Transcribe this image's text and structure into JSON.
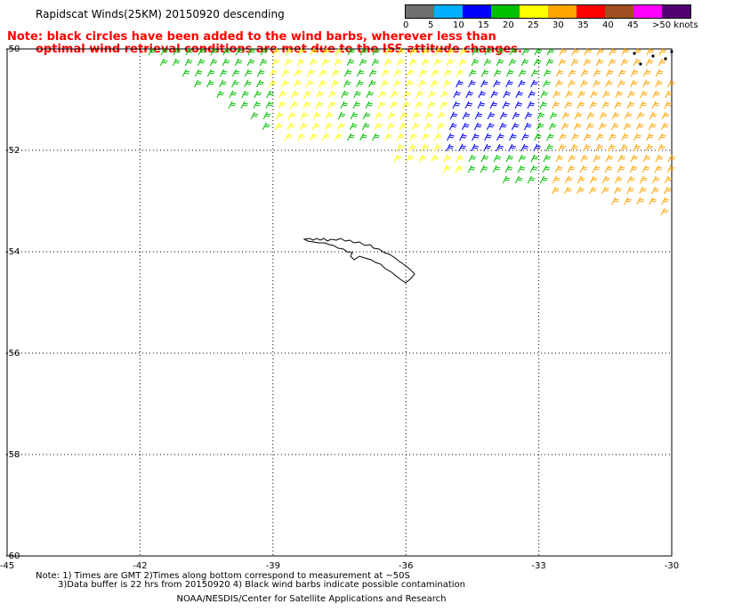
{
  "title": "Rapidscat Winds(25KM) 20150920 descending",
  "note": {
    "line1": "Note: black circles have been added to the wind barbs, wherever less than",
    "line2": "optimal wind retrieval conditions are met due to the ISS attitude changes."
  },
  "legend": {
    "labels": [
      "0",
      "5",
      "10",
      "15",
      "20",
      "25",
      "30",
      "35",
      "40",
      "45",
      ">50 knots"
    ],
    "colors": [
      "#707070",
      "#00b0ff",
      "#0000ff",
      "#00c000",
      "#ffff00",
      "#ffa500",
      "#ff0000",
      "#a05020",
      "#ff00ff",
      "#500070"
    ]
  },
  "map": {
    "lat_labels": [
      "-50",
      "-52",
      "-54",
      "-56",
      "-58",
      "-60"
    ],
    "lon_labels": [
      "-45",
      "-42",
      "-39",
      "-36",
      "-33",
      "-30"
    ],
    "lat_values": [
      -50,
      -52,
      -54,
      -56,
      -58,
      -60
    ],
    "lon_values": [
      -45,
      -42,
      -39,
      -36,
      -33,
      -30
    ],
    "island_name_hidden": ""
  },
  "footer": {
    "line1": "Note: 1) Times are GMT 2)Times along bottom correspond to measurement at ~50S",
    "line2": "3)Data buffer is 22 hrs from 20150920 4) Black wind barbs indicate possible contamination",
    "line3": "NOAA/NESDIS/Center for Satellite Applications and Research"
  }
}
